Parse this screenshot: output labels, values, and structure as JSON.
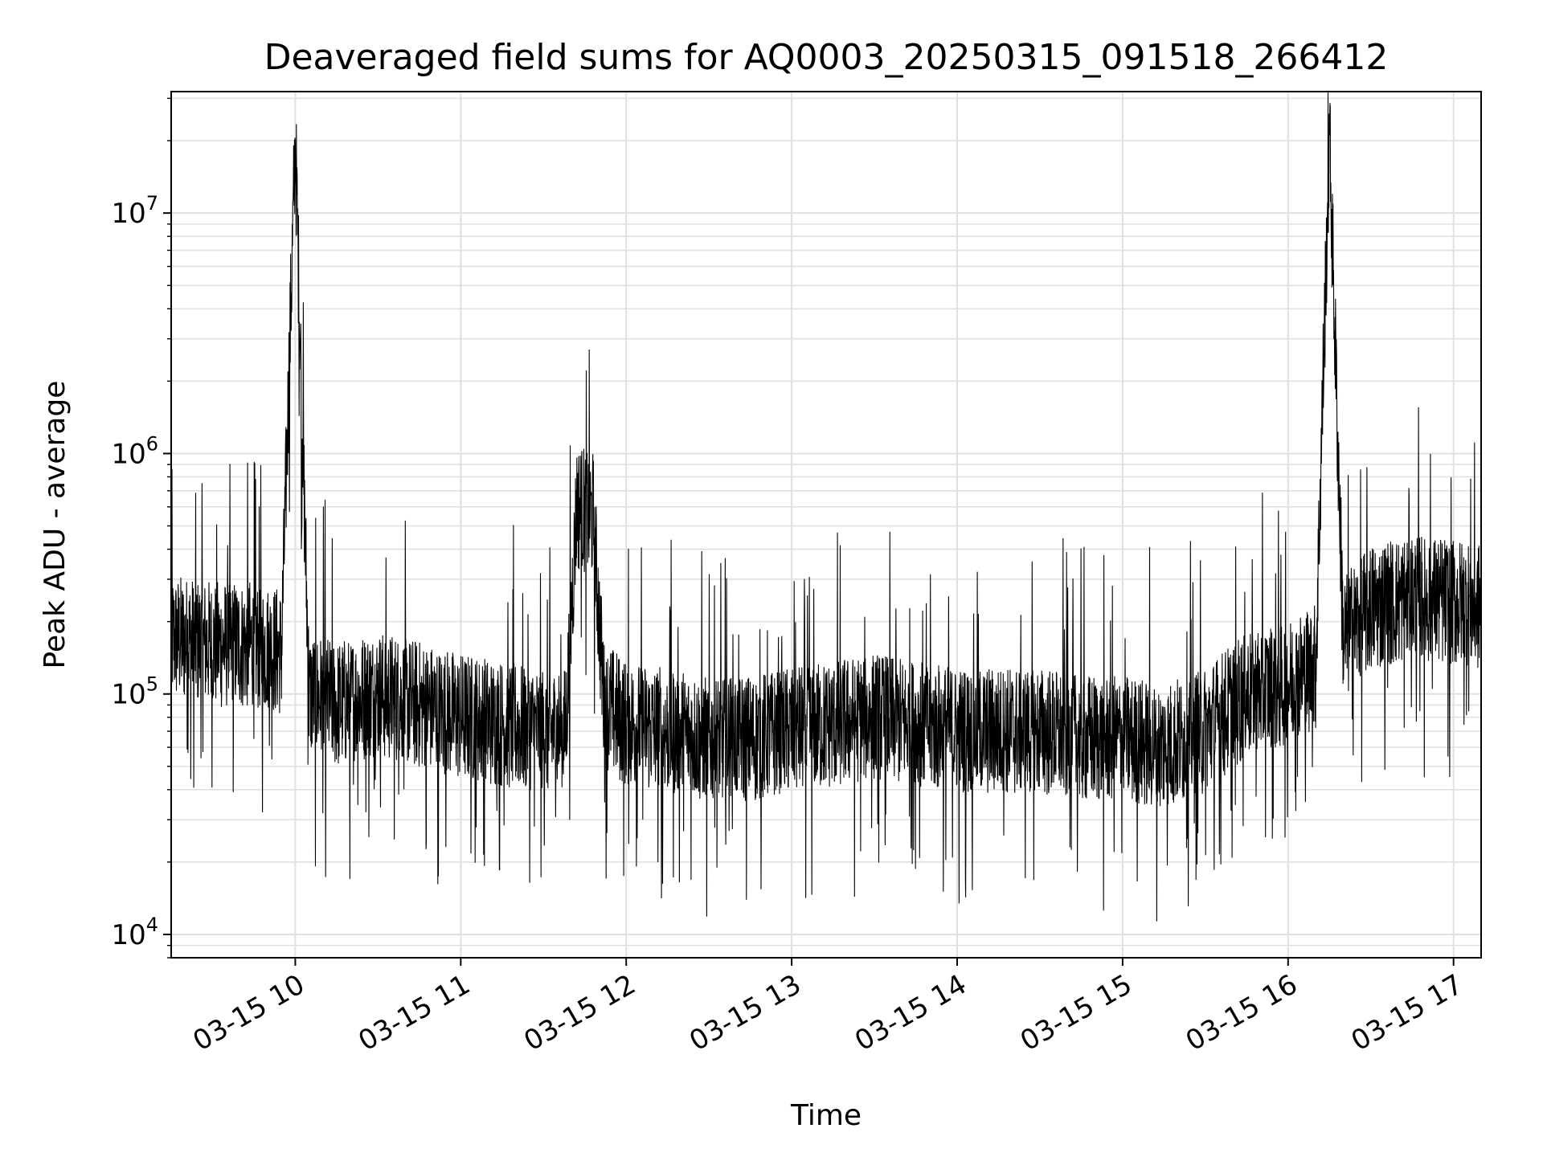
{
  "chart_data": {
    "type": "line",
    "title": "Deaveraged field sums for AQ0003_20250315_091518_266412",
    "xlabel": "Time",
    "ylabel": "Peak ADU - average",
    "y_scale": "log",
    "ylim": [
      8000,
      32000000
    ],
    "xlim": [
      "2025-03-15 09:15",
      "2025-03-15 17:10"
    ],
    "x_ticks": [
      "03-15 10",
      "03-15 11",
      "03-15 12",
      "03-15 13",
      "03-15 14",
      "03-15 15",
      "03-15 16",
      "03-15 17"
    ],
    "y_ticks": [
      {
        "base": "10",
        "exp": "4"
      },
      {
        "base": "10",
        "exp": "5"
      },
      {
        "base": "10",
        "exp": "6"
      },
      {
        "base": "10",
        "exp": "7"
      }
    ],
    "grid": true,
    "line_color": "#000000",
    "series": [
      {
        "x": [
          "2025-03-15 09:15",
          "2025-03-15 09:30",
          "2025-03-15 09:45",
          "2025-03-15 09:55",
          "2025-03-15 10:00",
          "2025-03-15 10:05",
          "2025-03-15 10:15",
          "2025-03-15 10:30",
          "2025-03-15 10:45",
          "2025-03-15 11:00",
          "2025-03-15 11:15",
          "2025-03-15 11:30",
          "2025-03-15 11:38",
          "2025-03-15 11:42",
          "2025-03-15 11:48",
          "2025-03-15 11:52",
          "2025-03-15 12:00",
          "2025-03-15 12:15",
          "2025-03-15 12:30",
          "2025-03-15 12:45",
          "2025-03-15 13:00",
          "2025-03-15 13:15",
          "2025-03-15 13:30",
          "2025-03-15 13:45",
          "2025-03-15 14:00",
          "2025-03-15 14:15",
          "2025-03-15 14:30",
          "2025-03-15 14:45",
          "2025-03-15 15:00",
          "2025-03-15 15:15",
          "2025-03-15 15:30",
          "2025-03-15 15:45",
          "2025-03-15 16:00",
          "2025-03-15 16:10",
          "2025-03-15 16:15",
          "2025-03-15 16:20",
          "2025-03-15 16:30",
          "2025-03-15 16:45",
          "2025-03-15 17:00",
          "2025-03-15 17:10"
        ],
        "y": [
          170000,
          160000,
          160000,
          150000,
          20000000,
          100000,
          90000,
          100000,
          90000,
          80000,
          75000,
          70000,
          70000,
          600000,
          550000,
          90000,
          75000,
          70000,
          65000,
          65000,
          70000,
          75000,
          80000,
          75000,
          70000,
          70000,
          70000,
          65000,
          65000,
          60000,
          70000,
          100000,
          110000,
          130000,
          21000000,
          170000,
          230000,
          250000,
          240000,
          230000
        ]
      }
    ]
  }
}
